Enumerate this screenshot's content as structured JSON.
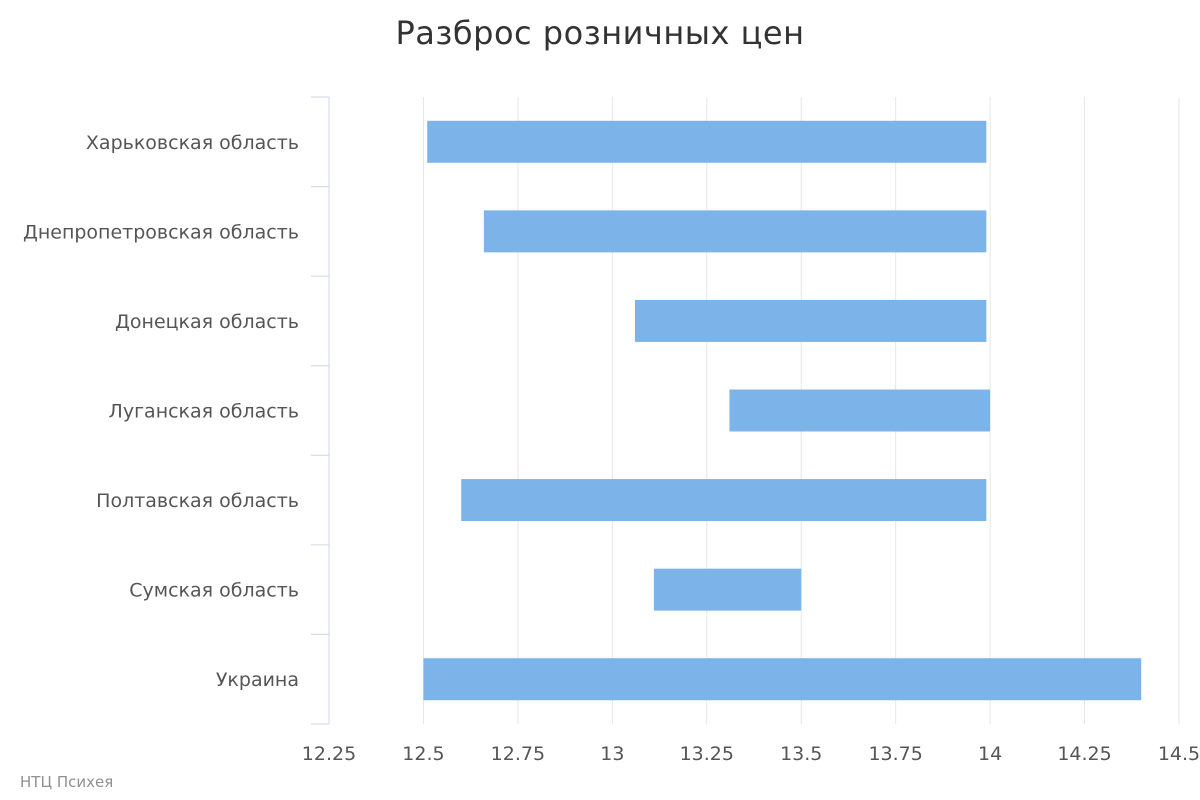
{
  "chart_data": {
    "type": "bar",
    "orientation": "horizontal",
    "range": true,
    "title": "Разброс розничных цен",
    "categories": [
      "Харьковская область",
      "Днепропетровская область",
      "Донецкая область",
      "Луганская область",
      "Полтавская область",
      "Сумская область",
      "Украина"
    ],
    "series": [
      {
        "color": "#7cb4ea",
        "ranges": [
          [
            12.51,
            13.99
          ],
          [
            12.66,
            13.99
          ],
          [
            13.06,
            13.99
          ],
          [
            13.31,
            14.0
          ],
          [
            12.6,
            13.99
          ],
          [
            13.11,
            13.5
          ],
          [
            12.5,
            14.4
          ]
        ]
      }
    ],
    "xlim": [
      12.25,
      14.5
    ],
    "ticks": [
      "12.25",
      "12.5",
      "12.75",
      "13",
      "13.25",
      "13.5",
      "13.75",
      "14",
      "14.25",
      "14.5"
    ],
    "grid": true,
    "legend": "none"
  },
  "credits": "НТЦ Психея"
}
